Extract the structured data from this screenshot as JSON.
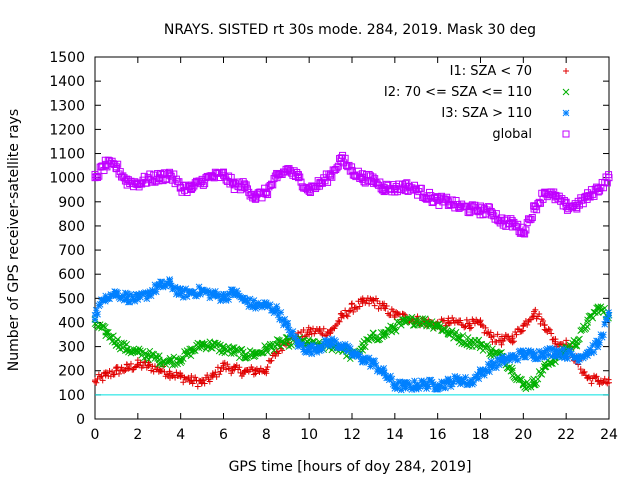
{
  "chart_data": {
    "type": "scatter",
    "title": "NRAYS. SISTED rt 30s mode. 284, 2019. Mask 30 deg",
    "xlabel": "GPS time [hours of doy 284, 2019]",
    "ylabel": "Number of GPS receiver-satellite rays",
    "xlim": [
      0,
      24
    ],
    "ylim": [
      0,
      1500
    ],
    "xticks": [
      0,
      2,
      4,
      6,
      8,
      10,
      12,
      14,
      16,
      18,
      20,
      22,
      24
    ],
    "yticks": [
      0,
      100,
      200,
      300,
      400,
      500,
      600,
      700,
      800,
      900,
      1000,
      1100,
      1200,
      1300,
      1400,
      1500
    ],
    "legend_position": "top-right",
    "threshold_line": {
      "y": 100,
      "color": "#00e0e0"
    },
    "series": [
      {
        "name": "I1: SZA < 70",
        "marker": "plus",
        "color": "#e00000",
        "x": [
          0,
          0.5,
          1,
          1.5,
          2,
          2.5,
          3,
          3.5,
          4,
          4.5,
          5,
          5.5,
          6,
          6.5,
          7,
          7.5,
          8,
          8.5,
          9,
          9.5,
          10,
          10.5,
          11,
          11.5,
          12,
          12.5,
          13,
          13.5,
          14,
          14.5,
          15,
          15.5,
          16,
          16.5,
          17,
          17.5,
          18,
          18.5,
          19,
          19.5,
          20,
          20.5,
          21,
          21.5,
          22,
          22.5,
          23,
          23.5,
          24
        ],
        "y": [
          155,
          180,
          200,
          210,
          225,
          220,
          205,
          190,
          175,
          160,
          150,
          175,
          220,
          205,
          195,
          200,
          205,
          280,
          330,
          340,
          360,
          365,
          360,
          420,
          460,
          480,
          490,
          460,
          430,
          420,
          410,
          400,
          390,
          400,
          400,
          395,
          390,
          340,
          325,
          335,
          385,
          445,
          390,
          320,
          310,
          240,
          170,
          160,
          150
        ]
      },
      {
        "name": "I2: 70 <= SZA <= 110",
        "marker": "cross",
        "color": "#00b000",
        "x": [
          0,
          0.5,
          1,
          1.5,
          2,
          2.5,
          3,
          3.5,
          4,
          4.5,
          5,
          5.5,
          6,
          6.5,
          7,
          7.5,
          8,
          8.5,
          9,
          9.5,
          10,
          10.5,
          11,
          11.5,
          12,
          12.5,
          13,
          13.5,
          14,
          14.5,
          15,
          15.5,
          16,
          16.5,
          17,
          17.5,
          18,
          18.5,
          19,
          19.5,
          20,
          20.5,
          21,
          21.5,
          22,
          22.5,
          23,
          23.5,
          24
        ],
        "y": [
          395,
          360,
          320,
          290,
          275,
          265,
          245,
          240,
          250,
          280,
          310,
          305,
          290,
          280,
          265,
          270,
          290,
          310,
          320,
          320,
          310,
          300,
          305,
          295,
          260,
          300,
          340,
          350,
          380,
          400,
          410,
          400,
          390,
          360,
          335,
          320,
          310,
          280,
          260,
          200,
          140,
          150,
          215,
          255,
          290,
          320,
          400,
          460,
          430
        ]
      },
      {
        "name": "I3: SZA > 110",
        "marker": "star",
        "color": "#0080ff",
        "x": [
          0,
          0.5,
          1,
          1.5,
          2,
          2.5,
          3,
          3.5,
          4,
          4.5,
          5,
          5.5,
          6,
          6.5,
          7,
          7.5,
          8,
          8.5,
          9,
          9.5,
          10,
          10.5,
          11,
          11.5,
          12,
          12.5,
          13,
          13.5,
          14,
          14.5,
          15,
          15.5,
          16,
          16.5,
          17,
          17.5,
          18,
          18.5,
          19,
          19.5,
          20,
          20.5,
          21,
          21.5,
          22,
          22.5,
          23,
          23.5,
          24
        ],
        "y": [
          430,
          510,
          520,
          505,
          495,
          520,
          550,
          560,
          520,
          525,
          530,
          515,
          505,
          525,
          490,
          470,
          470,
          450,
          380,
          310,
          285,
          300,
          320,
          305,
          270,
          250,
          230,
          190,
          140,
          135,
          140,
          145,
          140,
          150,
          165,
          150,
          190,
          220,
          240,
          255,
          270,
          265,
          275,
          280,
          270,
          255,
          275,
          310,
          430
        ]
      },
      {
        "name": "global",
        "marker": "square",
        "color": "#c000ff",
        "x": [
          0,
          0.5,
          1,
          1.5,
          2,
          2.5,
          3,
          3.5,
          4,
          4.5,
          5,
          5.5,
          6,
          6.5,
          7,
          7.5,
          8,
          8.5,
          9,
          9.5,
          10,
          10.5,
          11,
          11.5,
          12,
          12.5,
          13,
          13.5,
          14,
          14.5,
          15,
          15.5,
          16,
          16.5,
          17,
          17.5,
          18,
          18.5,
          19,
          19.5,
          20,
          20.5,
          21,
          21.5,
          22,
          22.5,
          23,
          23.5,
          24
        ],
        "y": [
          1000,
          1055,
          1045,
          985,
          975,
          995,
          1000,
          1015,
          960,
          955,
          985,
          1005,
          1010,
          970,
          965,
          920,
          940,
          1000,
          1035,
          1000,
          950,
          975,
          1010,
          1080,
          1030,
          1000,
          990,
          960,
          955,
          965,
          950,
          925,
          905,
          900,
          880,
          870,
          865,
          860,
          820,
          810,
          775,
          870,
          940,
          920,
          880,
          885,
          920,
          955,
          1000
        ]
      }
    ]
  }
}
